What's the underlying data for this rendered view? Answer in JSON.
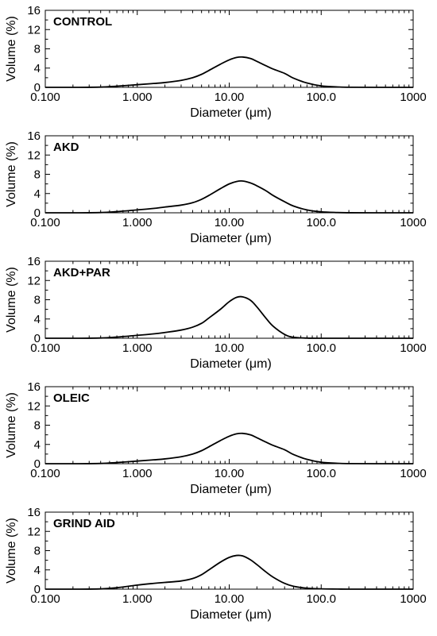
{
  "chart_data": [
    {
      "type": "line",
      "title": "CONTROL",
      "xlabel": "Diameter (μm)",
      "ylabel": "Volume (%)",
      "xscale": "log",
      "xlim": [
        0.1,
        1000
      ],
      "ylim": [
        0,
        16
      ],
      "xticks": [
        "0.100",
        "1.000",
        "10.00",
        "100.0",
        "1000"
      ],
      "yticks": [
        "0",
        "4",
        "8",
        "12",
        "16"
      ],
      "grid": false,
      "series": [
        {
          "x": [
            0.1,
            0.2,
            0.4,
            0.6,
            1.0,
            1.5,
            2.0,
            3.0,
            4.0,
            5.0,
            6.0,
            8.0,
            10.0,
            12.0,
            14.0,
            17.0,
            20.0,
            25.0,
            30.0,
            40.0,
            50.0,
            70.0,
            100.0,
            150.0,
            200.0,
            400.0,
            1000.0
          ],
          "y": [
            0,
            0,
            0.05,
            0.25,
            0.55,
            0.8,
            1.0,
            1.45,
            2.0,
            2.7,
            3.5,
            4.8,
            5.7,
            6.2,
            6.3,
            6.0,
            5.4,
            4.5,
            3.8,
            2.9,
            1.9,
            0.9,
            0.3,
            0.08,
            0.02,
            0,
            0
          ]
        }
      ]
    },
    {
      "type": "line",
      "title": "AKD",
      "xlabel": "Diameter (μm)",
      "ylabel": "Volume (%)",
      "xscale": "log",
      "xlim": [
        0.1,
        1000
      ],
      "ylim": [
        0,
        16
      ],
      "xticks": [
        "0.100",
        "1.000",
        "10.00",
        "100.0",
        "1000"
      ],
      "yticks": [
        "0",
        "4",
        "8",
        "12",
        "16"
      ],
      "grid": false,
      "series": [
        {
          "x": [
            0.1,
            0.2,
            0.4,
            0.6,
            1.0,
            1.5,
            2.0,
            3.0,
            4.0,
            5.0,
            6.0,
            8.0,
            10.0,
            12.0,
            14.0,
            17.0,
            20.0,
            25.0,
            30.0,
            40.0,
            50.0,
            70.0,
            100.0,
            150.0,
            200.0,
            400.0,
            1000.0
          ],
          "y": [
            0,
            0,
            0.05,
            0.25,
            0.6,
            0.9,
            1.2,
            1.6,
            2.1,
            2.8,
            3.6,
            5.0,
            6.0,
            6.5,
            6.6,
            6.2,
            5.6,
            4.6,
            3.6,
            2.3,
            1.4,
            0.6,
            0.2,
            0.05,
            0.01,
            0,
            0
          ]
        }
      ]
    },
    {
      "type": "line",
      "title": "AKD+PAR",
      "xlabel": "Diameter (μm)",
      "ylabel": "Volume (%)",
      "xscale": "log",
      "xlim": [
        0.1,
        1000
      ],
      "ylim": [
        0,
        16
      ],
      "xticks": [
        "0.100",
        "1.000",
        "10.00",
        "100.0",
        "1000"
      ],
      "yticks": [
        "0",
        "4",
        "8",
        "12",
        "16"
      ],
      "grid": false,
      "series": [
        {
          "x": [
            0.1,
            0.2,
            0.4,
            0.6,
            1.0,
            1.5,
            2.0,
            3.0,
            4.0,
            5.0,
            6.0,
            8.0,
            10.0,
            12.0,
            14.0,
            17.0,
            20.0,
            25.0,
            30.0,
            40.0,
            50.0,
            70.0,
            100.0,
            150.0,
            1000.0
          ],
          "y": [
            0,
            0,
            0.05,
            0.25,
            0.6,
            0.9,
            1.2,
            1.7,
            2.3,
            3.1,
            4.2,
            6.0,
            7.6,
            8.5,
            8.6,
            7.9,
            6.5,
            4.2,
            2.5,
            0.8,
            0.2,
            0.03,
            0,
            0,
            0
          ]
        }
      ]
    },
    {
      "type": "line",
      "title": "OLEIC",
      "xlabel": "Diameter (μm)",
      "ylabel": "Volume (%)",
      "xscale": "log",
      "xlim": [
        0.1,
        1000
      ],
      "ylim": [
        0,
        16
      ],
      "xticks": [
        "0.100",
        "1.000",
        "10.00",
        "100.0",
        "1000"
      ],
      "yticks": [
        "0",
        "4",
        "8",
        "12",
        "16"
      ],
      "grid": false,
      "series": [
        {
          "x": [
            0.1,
            0.2,
            0.4,
            0.6,
            1.0,
            1.5,
            2.0,
            3.0,
            4.0,
            5.0,
            6.0,
            8.0,
            10.0,
            12.0,
            14.0,
            17.0,
            20.0,
            25.0,
            30.0,
            40.0,
            50.0,
            70.0,
            100.0,
            150.0,
            200.0,
            400.0,
            1000.0
          ],
          "y": [
            0,
            0,
            0.05,
            0.25,
            0.55,
            0.8,
            1.0,
            1.45,
            2.0,
            2.7,
            3.5,
            4.8,
            5.7,
            6.2,
            6.3,
            6.0,
            5.4,
            4.5,
            3.8,
            2.9,
            1.9,
            0.9,
            0.3,
            0.08,
            0.02,
            0,
            0
          ]
        }
      ]
    },
    {
      "type": "line",
      "title": "GRIND AID",
      "xlabel": "Diameter (μm)",
      "ylabel": "Volume (%)",
      "xscale": "log",
      "xlim": [
        0.1,
        1000
      ],
      "ylim": [
        0,
        16
      ],
      "xticks": [
        "0.100",
        "1.000",
        "10.00",
        "100.0",
        "1000"
      ],
      "yticks": [
        "0",
        "4",
        "8",
        "12",
        "16"
      ],
      "grid": false,
      "series": [
        {
          "x": [
            0.1,
            0.2,
            0.4,
            0.6,
            1.0,
            1.5,
            2.0,
            3.0,
            4.0,
            5.0,
            6.0,
            8.0,
            10.0,
            12.0,
            14.0,
            17.0,
            20.0,
            25.0,
            30.0,
            40.0,
            50.0,
            70.0,
            100.0,
            150.0,
            200.0,
            400.0,
            1000.0
          ],
          "y": [
            0,
            0,
            0.05,
            0.3,
            0.85,
            1.2,
            1.4,
            1.7,
            2.2,
            3.0,
            4.0,
            5.6,
            6.6,
            7.0,
            6.9,
            6.1,
            5.1,
            3.6,
            2.5,
            1.2,
            0.6,
            0.2,
            0.06,
            0.02,
            0,
            0,
            0
          ]
        }
      ]
    }
  ]
}
